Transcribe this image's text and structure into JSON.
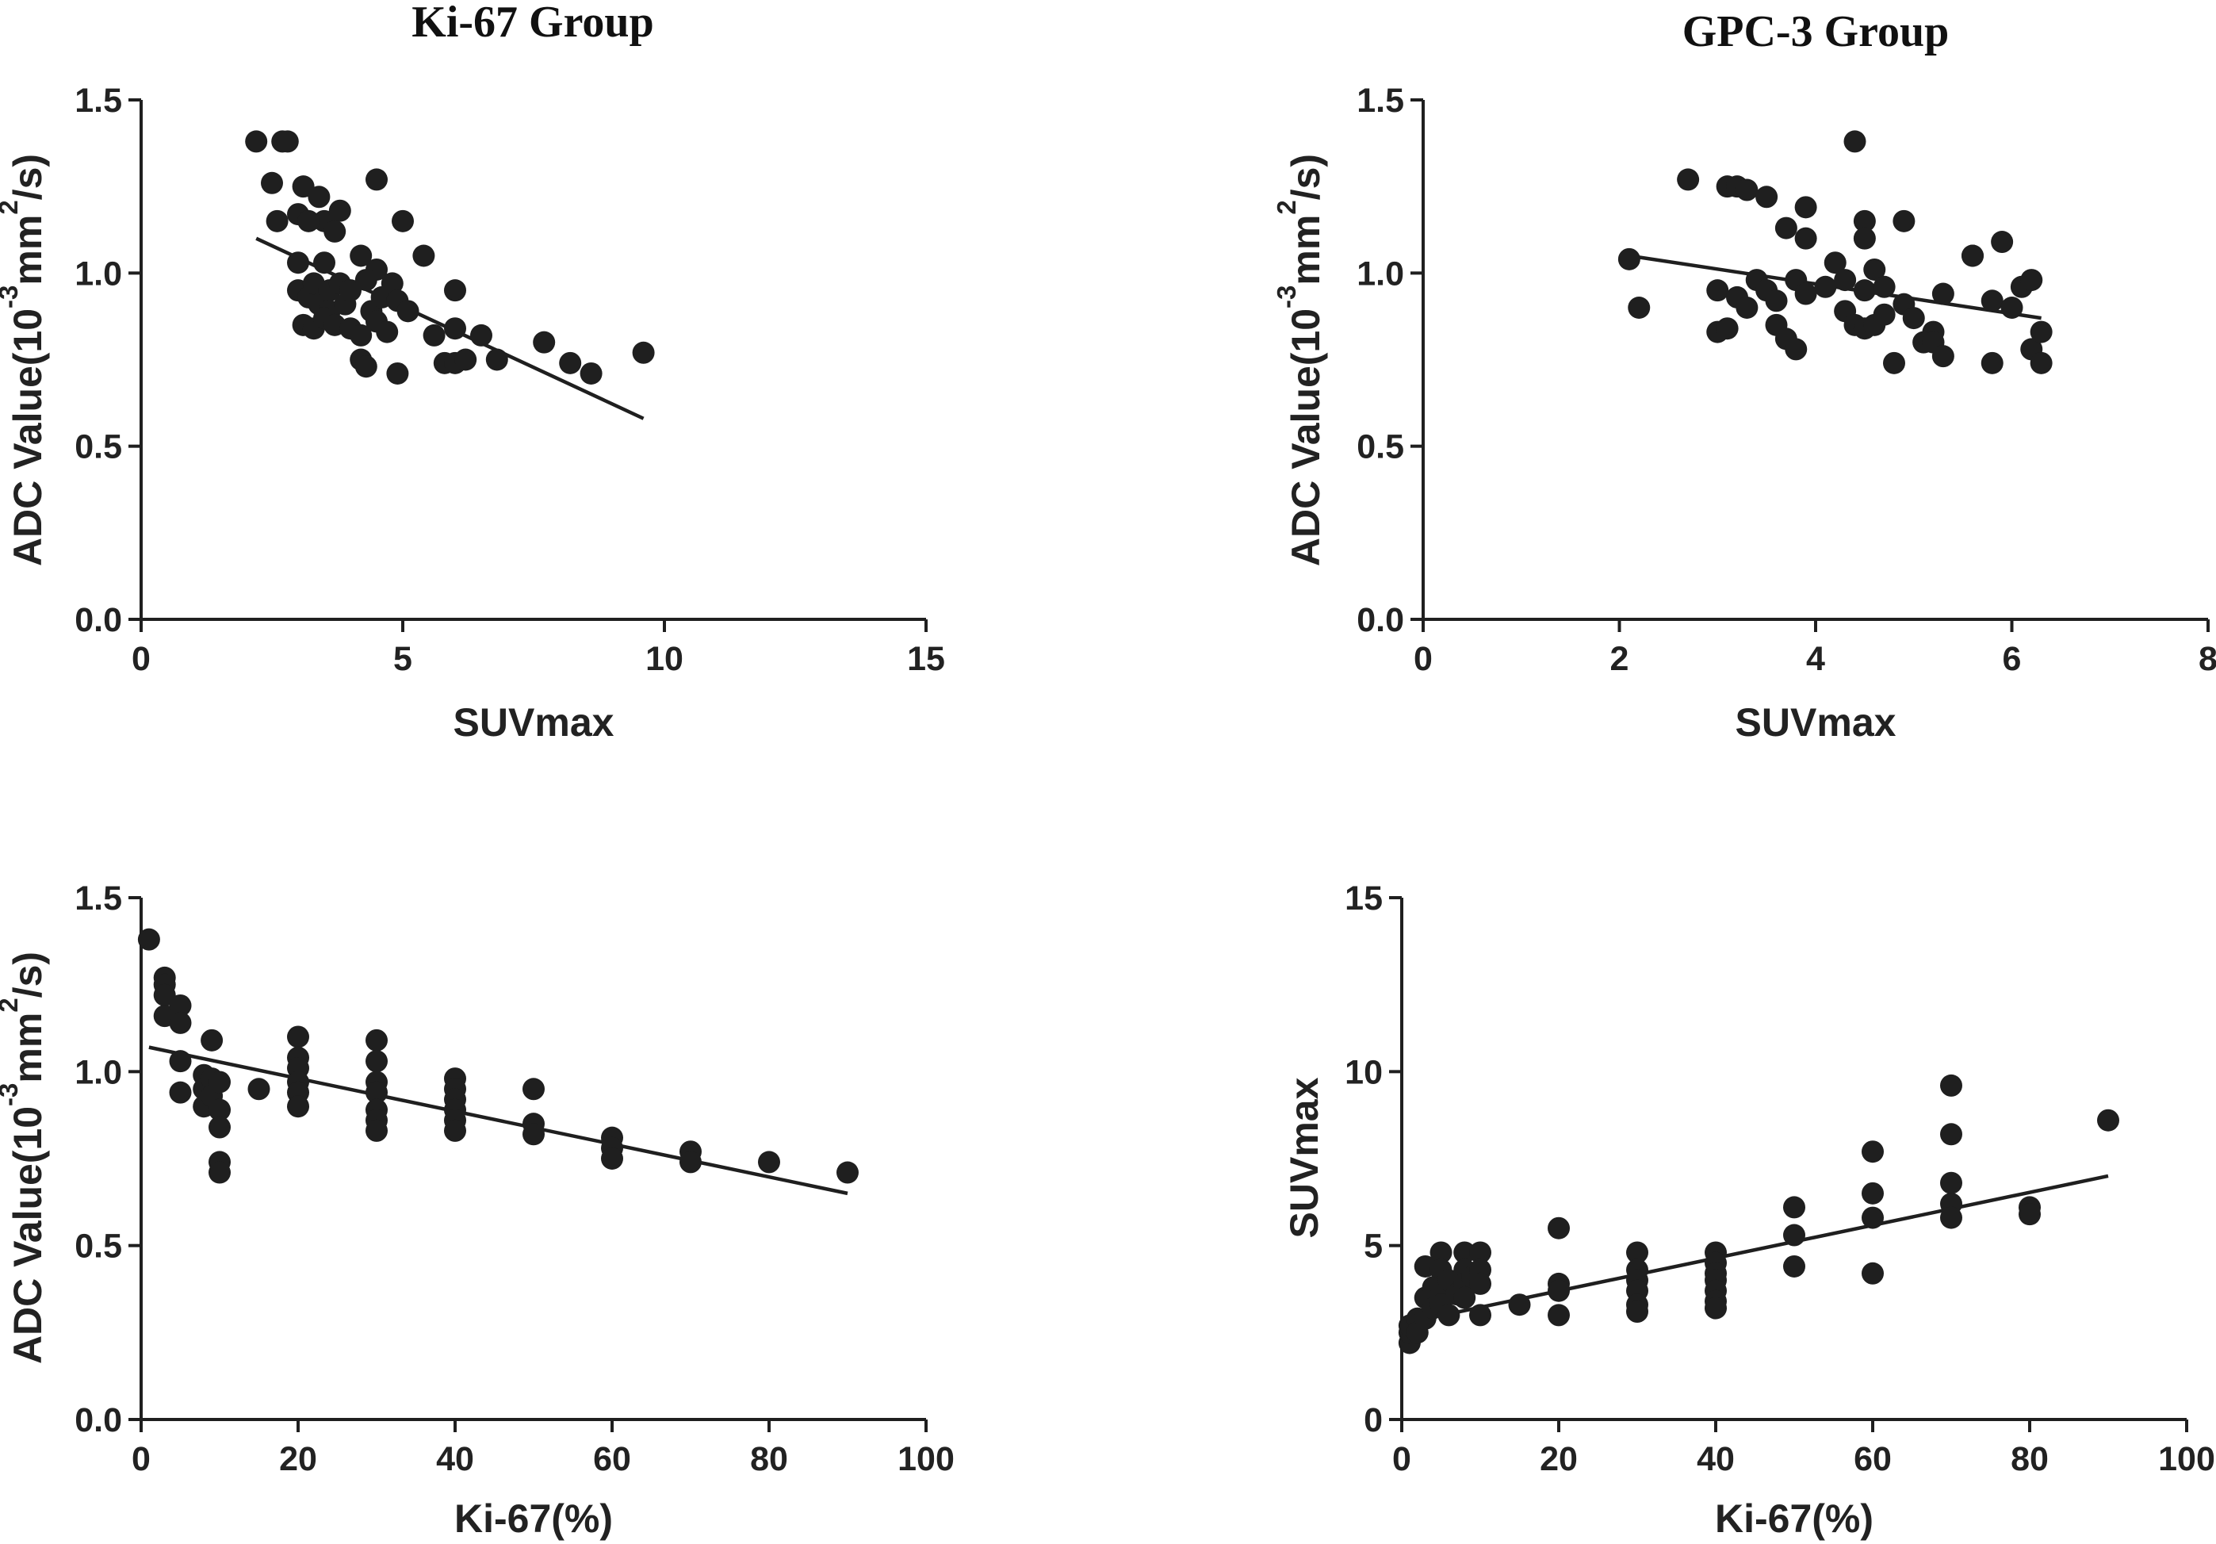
{
  "colors": {
    "ink": "#1f1f1f",
    "background": "#ffffff"
  },
  "titles": {
    "left": "Ki-67 Group",
    "right": "GPC-3 Group"
  },
  "chart_data": [
    {
      "type": "scatter",
      "id": "adc_vs_suv_ki67",
      "xlabel": "SUVmax",
      "ylabel": {
        "base": "ADC Value(10",
        "exp1": "-3",
        "mid": "mm",
        "exp2": "2",
        "end": "/s)"
      },
      "xlim": [
        0,
        15
      ],
      "ylim": [
        0,
        1.5
      ],
      "xticks": [
        0,
        5,
        10,
        15
      ],
      "yticks": [
        0.0,
        0.5,
        1.0,
        1.5
      ],
      "xtick_labels": [
        "0",
        "5",
        "10",
        "15"
      ],
      "ytick_labels": [
        "0.0",
        "0.5",
        "1.0",
        "1.5"
      ],
      "trendline": [
        [
          2.2,
          1.1
        ],
        [
          9.6,
          0.58
        ]
      ],
      "points": [
        [
          2.2,
          1.38
        ],
        [
          2.7,
          1.38
        ],
        [
          2.8,
          1.38
        ],
        [
          2.5,
          1.26
        ],
        [
          2.6,
          1.15
        ],
        [
          3.1,
          1.25
        ],
        [
          3.4,
          1.22
        ],
        [
          3.0,
          1.17
        ],
        [
          3.5,
          1.15
        ],
        [
          3.8,
          1.18
        ],
        [
          4.5,
          1.27
        ],
        [
          3.2,
          1.15
        ],
        [
          3.7,
          1.12
        ],
        [
          5.0,
          1.15
        ],
        [
          3.0,
          1.03
        ],
        [
          3.5,
          1.03
        ],
        [
          4.2,
          1.05
        ],
        [
          4.5,
          1.01
        ],
        [
          5.4,
          1.05
        ],
        [
          3.0,
          0.95
        ],
        [
          3.2,
          0.93
        ],
        [
          3.3,
          0.97
        ],
        [
          3.4,
          0.91
        ],
        [
          3.6,
          0.95
        ],
        [
          3.6,
          0.89
        ],
        [
          3.8,
          0.97
        ],
        [
          3.9,
          0.91
        ],
        [
          4.0,
          0.95
        ],
        [
          4.3,
          0.98
        ],
        [
          4.4,
          0.89
        ],
        [
          4.6,
          0.93
        ],
        [
          4.8,
          0.97
        ],
        [
          4.9,
          0.92
        ],
        [
          5.1,
          0.89
        ],
        [
          3.1,
          0.85
        ],
        [
          3.3,
          0.84
        ],
        [
          3.5,
          0.87
        ],
        [
          3.7,
          0.85
        ],
        [
          4.0,
          0.84
        ],
        [
          4.2,
          0.82
        ],
        [
          4.5,
          0.86
        ],
        [
          4.7,
          0.83
        ],
        [
          5.6,
          0.82
        ],
        [
          6.0,
          0.95
        ],
        [
          6.0,
          0.84
        ],
        [
          6.5,
          0.82
        ],
        [
          4.2,
          0.75
        ],
        [
          4.3,
          0.73
        ],
        [
          4.9,
          0.71
        ],
        [
          5.8,
          0.74
        ],
        [
          6.0,
          0.74
        ],
        [
          6.2,
          0.75
        ],
        [
          6.8,
          0.75
        ],
        [
          7.7,
          0.8
        ],
        [
          8.2,
          0.74
        ],
        [
          8.6,
          0.71
        ],
        [
          9.6,
          0.77
        ]
      ]
    },
    {
      "type": "scatter",
      "id": "adc_vs_suv_gpc3",
      "xlabel": "SUVmax",
      "ylabel": {
        "base": "ADC Value(10",
        "exp1": "-3",
        "mid": "mm",
        "exp2": "2",
        "end": "/s)"
      },
      "xlim": [
        0,
        8
      ],
      "ylim": [
        0,
        1.5
      ],
      "xticks": [
        0,
        2,
        4,
        6,
        8
      ],
      "yticks": [
        0.0,
        0.5,
        1.0,
        1.5
      ],
      "xtick_labels": [
        "0",
        "2",
        "4",
        "6",
        "8"
      ],
      "ytick_labels": [
        "0.0",
        "0.5",
        "1.0",
        "1.5"
      ],
      "trendline": [
        [
          2.1,
          1.05
        ],
        [
          6.3,
          0.87
        ]
      ],
      "points": [
        [
          2.1,
          1.04
        ],
        [
          2.2,
          0.9
        ],
        [
          2.7,
          1.27
        ],
        [
          3.1,
          1.25
        ],
        [
          3.2,
          1.25
        ],
        [
          3.3,
          1.24
        ],
        [
          3.5,
          1.22
        ],
        [
          4.4,
          1.38
        ],
        [
          3.7,
          1.13
        ],
        [
          3.9,
          1.19
        ],
        [
          3.9,
          1.1
        ],
        [
          4.5,
          1.15
        ],
        [
          4.5,
          1.1
        ],
        [
          4.9,
          1.15
        ],
        [
          5.6,
          1.05
        ],
        [
          5.9,
          1.09
        ],
        [
          3.0,
          0.95
        ],
        [
          3.2,
          0.93
        ],
        [
          3.4,
          0.98
        ],
        [
          3.5,
          0.95
        ],
        [
          3.6,
          0.92
        ],
        [
          3.8,
          0.98
        ],
        [
          3.9,
          0.94
        ],
        [
          4.1,
          0.96
        ],
        [
          4.2,
          1.03
        ],
        [
          4.3,
          0.98
        ],
        [
          4.5,
          0.95
        ],
        [
          4.6,
          1.01
        ],
        [
          4.7,
          0.96
        ],
        [
          4.9,
          0.91
        ],
        [
          5.0,
          0.87
        ],
        [
          5.2,
          0.83
        ],
        [
          5.3,
          0.94
        ],
        [
          5.6,
          1.05
        ],
        [
          5.8,
          0.92
        ],
        [
          6.0,
          0.9
        ],
        [
          6.1,
          0.96
        ],
        [
          6.2,
          0.98
        ],
        [
          3.0,
          0.83
        ],
        [
          3.1,
          0.84
        ],
        [
          3.6,
          0.85
        ],
        [
          3.7,
          0.81
        ],
        [
          3.8,
          0.78
        ],
        [
          4.3,
          0.89
        ],
        [
          4.4,
          0.85
        ],
        [
          4.5,
          0.84
        ],
        [
          4.6,
          0.85
        ],
        [
          4.7,
          0.88
        ],
        [
          5.1,
          0.8
        ],
        [
          5.2,
          0.8
        ],
        [
          5.3,
          0.76
        ],
        [
          5.8,
          0.74
        ],
        [
          6.2,
          0.78
        ],
        [
          6.3,
          0.74
        ],
        [
          4.8,
          0.74
        ],
        [
          3.3,
          0.9
        ],
        [
          6.3,
          0.83
        ]
      ]
    },
    {
      "type": "scatter",
      "id": "adc_vs_ki67",
      "xlabel": "Ki-67(%)",
      "ylabel": {
        "base": "ADC Value(10",
        "exp1": "-3",
        "mid": "mm",
        "exp2": "2",
        "end": "/s)"
      },
      "xlim": [
        0,
        100
      ],
      "ylim": [
        0,
        1.5
      ],
      "xticks": [
        0,
        20,
        40,
        60,
        80,
        100
      ],
      "yticks": [
        0.0,
        0.5,
        1.0,
        1.5
      ],
      "xtick_labels": [
        "0",
        "20",
        "40",
        "60",
        "80",
        "100"
      ],
      "ytick_labels": [
        "0.0",
        "0.5",
        "1.0",
        "1.5"
      ],
      "trendline": [
        [
          1,
          1.07
        ],
        [
          90,
          0.65
        ]
      ],
      "points": [
        [
          1,
          1.38
        ],
        [
          3,
          1.27
        ],
        [
          3,
          1.25
        ],
        [
          3,
          1.22
        ],
        [
          3,
          1.16
        ],
        [
          5,
          1.19
        ],
        [
          5,
          1.14
        ],
        [
          5,
          1.03
        ],
        [
          5,
          0.94
        ],
        [
          8,
          0.99
        ],
        [
          8,
          0.95
        ],
        [
          8,
          0.9
        ],
        [
          9,
          1.09
        ],
        [
          9,
          0.98
        ],
        [
          9,
          0.93
        ],
        [
          10,
          0.97
        ],
        [
          10,
          0.89
        ],
        [
          10,
          0.84
        ],
        [
          10,
          0.74
        ],
        [
          10,
          0.71
        ],
        [
          15,
          0.95
        ],
        [
          20,
          1.1
        ],
        [
          20,
          1.04
        ],
        [
          20,
          1.01
        ],
        [
          20,
          0.97
        ],
        [
          20,
          0.94
        ],
        [
          20,
          0.9
        ],
        [
          30,
          1.09
        ],
        [
          30,
          1.03
        ],
        [
          30,
          0.97
        ],
        [
          30,
          0.94
        ],
        [
          30,
          0.89
        ],
        [
          30,
          0.86
        ],
        [
          30,
          0.83
        ],
        [
          40,
          0.98
        ],
        [
          40,
          0.95
        ],
        [
          40,
          0.92
        ],
        [
          40,
          0.89
        ],
        [
          40,
          0.86
        ],
        [
          40,
          0.83
        ],
        [
          50,
          0.95
        ],
        [
          50,
          0.85
        ],
        [
          50,
          0.82
        ],
        [
          60,
          0.81
        ],
        [
          60,
          0.78
        ],
        [
          60,
          0.75
        ],
        [
          70,
          0.77
        ],
        [
          70,
          0.74
        ],
        [
          80,
          0.74
        ],
        [
          90,
          0.71
        ]
      ]
    },
    {
      "type": "scatter",
      "id": "suv_vs_ki67",
      "xlabel": "Ki-67(%)",
      "ylabel": {
        "base": "SUVmax"
      },
      "xlim": [
        0,
        100
      ],
      "ylim": [
        0,
        15
      ],
      "xticks": [
        0,
        20,
        40,
        60,
        80,
        100
      ],
      "yticks": [
        0,
        5,
        10,
        15
      ],
      "xtick_labels": [
        "0",
        "20",
        "40",
        "60",
        "80",
        "100"
      ],
      "ytick_labels": [
        "0",
        "5",
        "10",
        "15"
      ],
      "trendline": [
        [
          1,
          2.8
        ],
        [
          90,
          7.0
        ]
      ],
      "points": [
        [
          1,
          2.2
        ],
        [
          1,
          2.5
        ],
        [
          1,
          2.7
        ],
        [
          2,
          2.9
        ],
        [
          2,
          2.5
        ],
        [
          3,
          3.5
        ],
        [
          3,
          2.9
        ],
        [
          3,
          4.4
        ],
        [
          4,
          3.8
        ],
        [
          4,
          3.2
        ],
        [
          5,
          4.8
        ],
        [
          5,
          4.3
        ],
        [
          5,
          3.8
        ],
        [
          5,
          3.3
        ],
        [
          6,
          4.0
        ],
        [
          6,
          3.0
        ],
        [
          7,
          3.6
        ],
        [
          8,
          4.8
        ],
        [
          8,
          4.3
        ],
        [
          8,
          3.9
        ],
        [
          8,
          3.5
        ],
        [
          9,
          4.1
        ],
        [
          10,
          4.8
        ],
        [
          10,
          4.3
        ],
        [
          10,
          3.9
        ],
        [
          10,
          3.0
        ],
        [
          15,
          3.3
        ],
        [
          20,
          5.5
        ],
        [
          20,
          3.9
        ],
        [
          20,
          3.7
        ],
        [
          20,
          3.0
        ],
        [
          30,
          4.8
        ],
        [
          30,
          4.3
        ],
        [
          30,
          4.0
        ],
        [
          30,
          3.7
        ],
        [
          30,
          3.3
        ],
        [
          30,
          3.1
        ],
        [
          40,
          4.8
        ],
        [
          40,
          4.5
        ],
        [
          40,
          4.2
        ],
        [
          40,
          4.0
        ],
        [
          40,
          3.7
        ],
        [
          40,
          3.4
        ],
        [
          40,
          3.2
        ],
        [
          50,
          6.1
        ],
        [
          50,
          5.3
        ],
        [
          50,
          4.4
        ],
        [
          60,
          7.7
        ],
        [
          60,
          6.5
        ],
        [
          60,
          5.8
        ],
        [
          60,
          4.2
        ],
        [
          70,
          9.6
        ],
        [
          70,
          8.2
        ],
        [
          70,
          6.8
        ],
        [
          70,
          6.2
        ],
        [
          70,
          5.8
        ],
        [
          80,
          6.1
        ],
        [
          80,
          5.9
        ],
        [
          90,
          8.6
        ]
      ]
    }
  ]
}
